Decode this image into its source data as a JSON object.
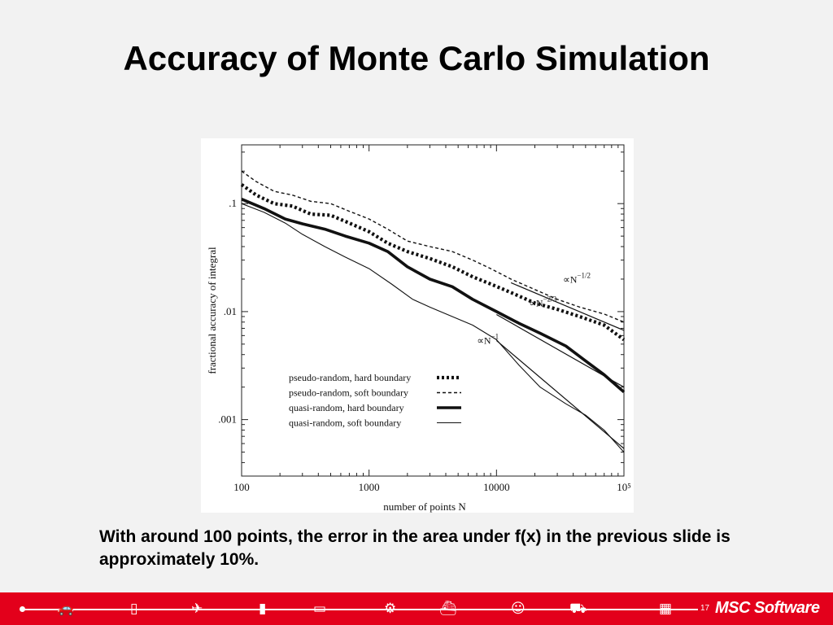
{
  "slide": {
    "title": "Accuracy of Monte Carlo Simulation",
    "caption": "With around 100 points, the error in the area under f(x) in the previous slide is approximately 10%."
  },
  "footer": {
    "page_number": "17",
    "brand": "MSC Software",
    "icons": [
      "car-icon",
      "phone-icon",
      "airplane-icon",
      "bottle-icon",
      "train-icon",
      "gear-icon",
      "ship-icon",
      "person-icon",
      "tractor-icon",
      "building-icon"
    ]
  },
  "chart_data": {
    "type": "line",
    "log_x": true,
    "log_y": true,
    "xlim": [
      100,
      100000
    ],
    "ylim": [
      0.0003,
      0.35
    ],
    "xlabel": "number of points N",
    "ylabel": "fractional accuracy of integral",
    "xticks": [
      "100",
      "1000",
      "10000",
      "10⁵"
    ],
    "yticks": [
      ".1",
      ".01",
      ".001"
    ],
    "legend_position": "bottom-left",
    "series": [
      {
        "name": "pseudo-random, hard boundary",
        "style": "dotted-thick",
        "x": [
          100,
          130,
          180,
          250,
          350,
          500,
          700,
          1000,
          1400,
          2000,
          3000,
          4500,
          6500,
          9000,
          13000,
          20000,
          30000,
          45000,
          70000,
          100000
        ],
        "y": [
          0.15,
          0.12,
          0.1,
          0.095,
          0.08,
          0.078,
          0.066,
          0.055,
          0.043,
          0.036,
          0.031,
          0.026,
          0.021,
          0.018,
          0.015,
          0.012,
          0.0105,
          0.009,
          0.0075,
          0.0055
        ]
      },
      {
        "name": "pseudo-random, soft boundary",
        "style": "dashed",
        "x": [
          100,
          130,
          180,
          250,
          350,
          500,
          700,
          1000,
          1400,
          2000,
          3000,
          4500,
          6500,
          9000,
          13000,
          20000,
          30000,
          45000,
          70000,
          100000
        ],
        "y": [
          0.2,
          0.16,
          0.13,
          0.12,
          0.105,
          0.1,
          0.085,
          0.072,
          0.058,
          0.045,
          0.04,
          0.036,
          0.03,
          0.025,
          0.02,
          0.016,
          0.013,
          0.011,
          0.0095,
          0.008
        ]
      },
      {
        "name": "quasi-random, hard boundary",
        "style": "solid-thick",
        "x": [
          100,
          150,
          220,
          300,
          450,
          650,
          1000,
          1400,
          2000,
          3000,
          4500,
          6500,
          10000,
          15000,
          22000,
          35000,
          50000,
          70000,
          100000
        ],
        "y": [
          0.11,
          0.09,
          0.072,
          0.065,
          0.058,
          0.05,
          0.043,
          0.036,
          0.026,
          0.02,
          0.017,
          0.013,
          0.01,
          0.0078,
          0.0063,
          0.0048,
          0.0035,
          0.0026,
          0.0018
        ]
      },
      {
        "name": "quasi-random, soft boundary",
        "style": "solid-thin",
        "x": [
          100,
          150,
          220,
          300,
          450,
          650,
          1000,
          1500,
          2200,
          3000,
          4500,
          6500,
          10000,
          15000,
          22000,
          35000,
          50000,
          70000,
          100000
        ],
        "y": [
          0.1,
          0.083,
          0.066,
          0.052,
          0.04,
          0.032,
          0.025,
          0.018,
          0.013,
          0.011,
          0.009,
          0.0075,
          0.0055,
          0.0032,
          0.002,
          0.0014,
          0.0011,
          0.0008,
          0.0005
        ]
      }
    ],
    "reference_lines": [
      {
        "label": "∝N",
        "exponent": "−1/2",
        "x": [
          13000,
          100000
        ],
        "y": [
          0.0185,
          0.0067
        ]
      },
      {
        "label": "∝N",
        "exponent": "−2/3",
        "x": [
          10000,
          100000
        ],
        "y": [
          0.0094,
          0.002
        ]
      },
      {
        "label": "∝N",
        "exponent": "−1",
        "x": [
          10000,
          100000
        ],
        "y": [
          0.0054,
          0.00054
        ]
      }
    ]
  }
}
